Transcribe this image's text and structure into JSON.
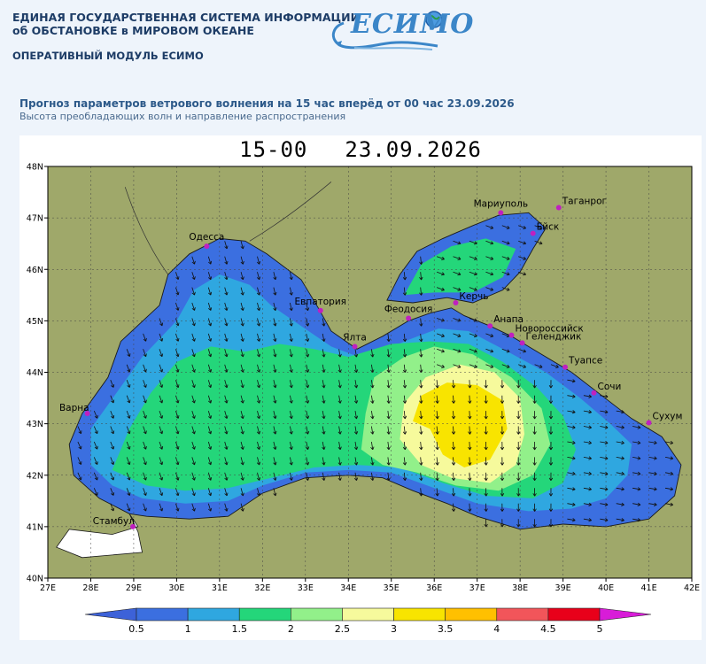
{
  "header": {
    "title_line1": "ЕДИНАЯ ГОСУДАРСТВЕННАЯ СИСТЕМА ИНФОРМАЦИИ",
    "title_line2": "об ОБСТАНОВКЕ в МИРОВОМ ОКЕАНЕ",
    "module": "ОПЕРАТИВНЫЙ МОДУЛЬ ЕСИМО",
    "logo_text": "ЕСИМО"
  },
  "forecast": {
    "title": "Прогноз параметров ветрового волнения на 15 час вперёд от 00 час 23.09.2026",
    "subtitle": "Высота преобладающих волн и направление распространения"
  },
  "map": {
    "hour_label": "15-00",
    "date_label": "23.09.2026",
    "lon_ticks": [
      "27E",
      "28E",
      "29E",
      "30E",
      "31E",
      "32E",
      "33E",
      "34E",
      "35E",
      "36E",
      "37E",
      "38E",
      "39E",
      "40E",
      "41E",
      "42E"
    ],
    "lat_ticks": [
      "48N",
      "47N",
      "46N",
      "45N",
      "44N",
      "43N",
      "42N",
      "41N",
      "40N"
    ],
    "lon_range": [
      27,
      42
    ],
    "lat_range": [
      40,
      48
    ],
    "land_color": "#9fa86a",
    "cities": [
      {
        "name": "Одесса",
        "lon": 30.7,
        "lat": 46.45
      },
      {
        "name": "Мариуполь",
        "lon": 37.55,
        "lat": 47.1
      },
      {
        "name": "Таганрог",
        "lon": 38.9,
        "lat": 47.2
      },
      {
        "name": "Ейск",
        "lon": 38.3,
        "lat": 46.7
      },
      {
        "name": "Евпатория",
        "lon": 33.35,
        "lat": 45.2
      },
      {
        "name": "Феодосия",
        "lon": 35.4,
        "lat": 45.05
      },
      {
        "name": "Керчь",
        "lon": 36.5,
        "lat": 45.35
      },
      {
        "name": "Ялта",
        "lon": 34.15,
        "lat": 44.5
      },
      {
        "name": "Анапа",
        "lon": 37.3,
        "lat": 44.9
      },
      {
        "name": "Новороссийск",
        "lon": 37.8,
        "lat": 44.72
      },
      {
        "name": "Геленджик",
        "lon": 38.05,
        "lat": 44.57
      },
      {
        "name": "Туапсе",
        "lon": 39.05,
        "lat": 44.1
      },
      {
        "name": "Сочи",
        "lon": 39.72,
        "lat": 43.6
      },
      {
        "name": "Сухум",
        "lon": 41.0,
        "lat": 43.02
      },
      {
        "name": "Варна",
        "lon": 27.92,
        "lat": 43.2
      },
      {
        "name": "Стамбул",
        "lon": 28.98,
        "lat": 41.0
      }
    ]
  },
  "legend": {
    "labels": [
      "0.5",
      "1",
      "1.5",
      "2",
      "2.5",
      "3",
      "3.5",
      "4",
      "4.5",
      "5"
    ],
    "colors": [
      "#3b6fe0",
      "#2fa7e0",
      "#24d67a",
      "#92f08a",
      "#f6fa9c",
      "#f8e400",
      "#ffc000",
      "#f2555a",
      "#e8001a"
    ],
    "low_arrow_color": "#3d62d8",
    "high_arrow_color": "#d81cd8"
  }
}
